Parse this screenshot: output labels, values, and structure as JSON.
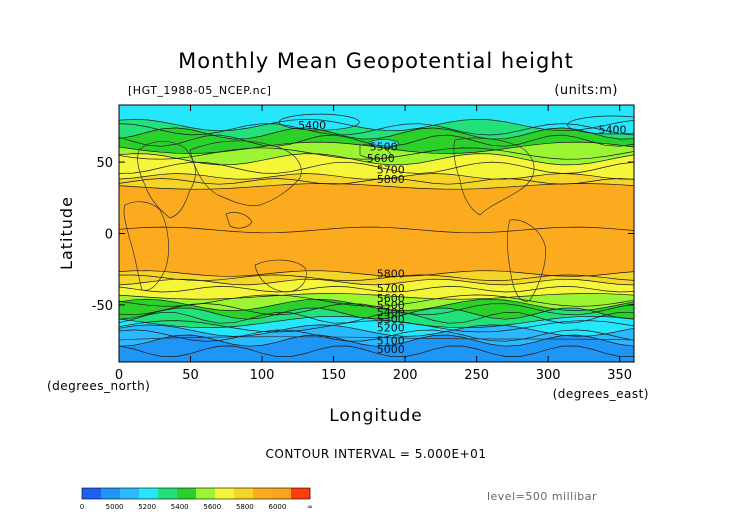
{
  "chart_data": {
    "type": "contour",
    "title": "Monthly Mean Geopotential height",
    "file_label": "[HGT_1988-05_NCEP.nc]",
    "units_label": "(units:m)",
    "xlabel": "Longitude",
    "ylabel": "Latitude",
    "x_unit_label": "(degrees_east)",
    "y_unit_label": "(degrees_north)",
    "xlim": [
      0,
      360
    ],
    "ylim": [
      -90,
      90
    ],
    "x_ticks": [
      0,
      50,
      100,
      150,
      200,
      250,
      300,
      350
    ],
    "y_ticks": [
      50,
      0,
      -50
    ],
    "contour_interval_text": "CONTOUR INTERVAL = 5.000E+01",
    "level_text": "level=500 millibar",
    "contour_labels": [
      {
        "text": "5400",
        "x": 135,
        "y": 76
      },
      {
        "text": "5400",
        "x": 345,
        "y": 73
      },
      {
        "text": "5500",
        "x": 185,
        "y": 61
      },
      {
        "text": "5600",
        "x": 183,
        "y": 53
      },
      {
        "text": "5700",
        "x": 190,
        "y": 45
      },
      {
        "text": "5800",
        "x": 190,
        "y": 38
      },
      {
        "text": "5800",
        "x": 190,
        "y": -28
      },
      {
        "text": "5700",
        "x": 190,
        "y": -38
      },
      {
        "text": "5600",
        "x": 190,
        "y": -45
      },
      {
        "text": "5500",
        "x": 190,
        "y": -50
      },
      {
        "text": "5400",
        "x": 190,
        "y": -55
      },
      {
        "text": "5300",
        "x": 190,
        "y": -60
      },
      {
        "text": "5200",
        "x": 190,
        "y": -66
      },
      {
        "text": "5100",
        "x": 190,
        "y": -75
      },
      {
        "text": "5000",
        "x": 190,
        "y": -81
      }
    ],
    "color_levels": [
      {
        "value": 5000,
        "color": "#1f5ff5"
      },
      {
        "value": 5100,
        "color": "#1f95f5"
      },
      {
        "value": 5200,
        "color": "#2ab8ff"
      },
      {
        "value": 5300,
        "color": "#26e6fb"
      },
      {
        "value": 5400,
        "color": "#22e07a"
      },
      {
        "value": 5500,
        "color": "#2ad12a"
      },
      {
        "value": 5600,
        "color": "#9cf533"
      },
      {
        "value": 5700,
        "color": "#f5f53a"
      },
      {
        "value": 5750,
        "color": "#f5d52a"
      },
      {
        "value": 5800,
        "color": "#fcab1e"
      },
      {
        "value": 5900,
        "color": "#faa41e"
      },
      {
        "value": 6000,
        "color": "#ff3d0a"
      }
    ],
    "colorbar_labels": [
      "0",
      "5000",
      "5200",
      "5400",
      "5600",
      "5800",
      "6000",
      "∞"
    ]
  }
}
